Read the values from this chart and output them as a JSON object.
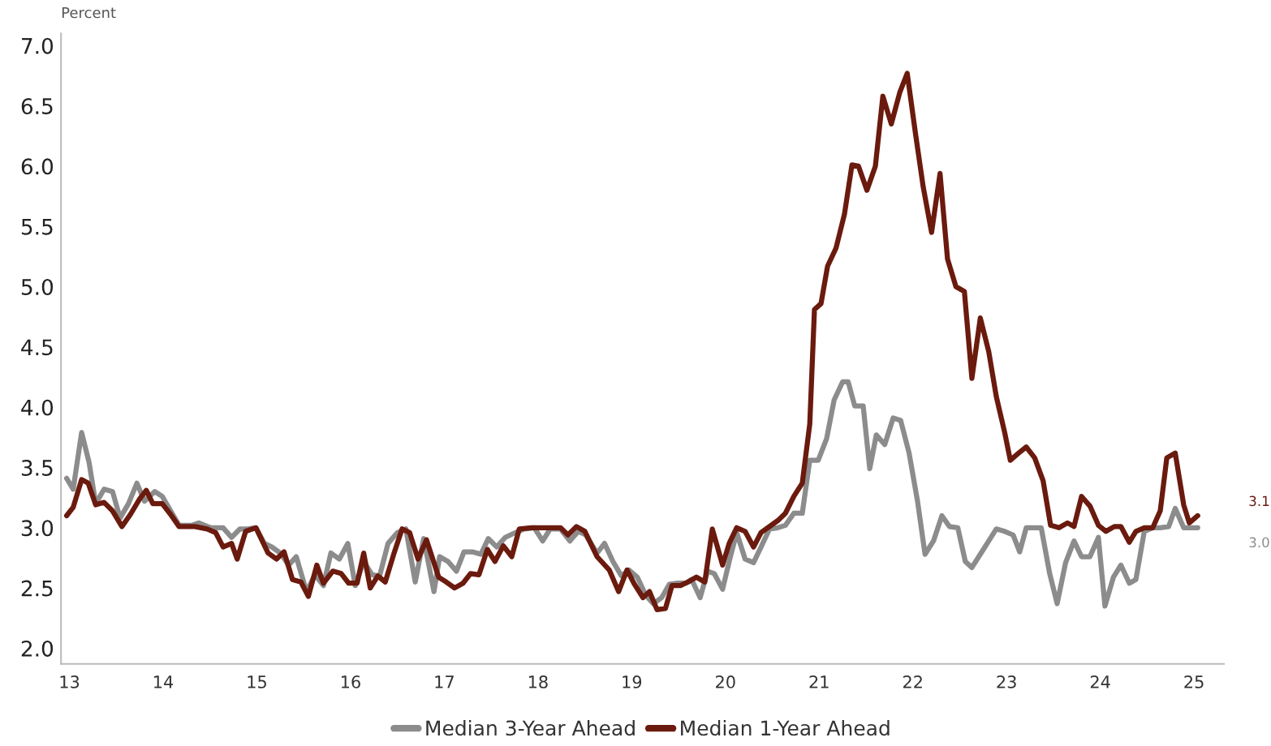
{
  "chart_data": {
    "type": "line",
    "ylabel": "Percent",
    "xlim": [
      12.91,
      25.32
    ],
    "ylim": [
      1.87,
      7.1
    ],
    "xticks": [
      13,
      14,
      15,
      16,
      17,
      18,
      19,
      20,
      21,
      22,
      23,
      24,
      25
    ],
    "yticks": [
      {
        "value": 2.0,
        "label": "2.0"
      },
      {
        "value": 2.5,
        "label": "2.5"
      },
      {
        "value": 3.0,
        "label": "3.0"
      },
      {
        "value": 3.5,
        "label": "3.5"
      },
      {
        "value": 4.0,
        "label": "4.0"
      },
      {
        "value": 4.5,
        "label": "4.5"
      },
      {
        "value": 5.0,
        "label": "5.0"
      },
      {
        "value": 5.5,
        "label": "5.5"
      },
      {
        "value": 6.0,
        "label": "6.0"
      },
      {
        "value": 6.5,
        "label": "6.5"
      },
      {
        "value": 7.0,
        "label": "7.0"
      }
    ],
    "grid": false,
    "legend": "bottom",
    "marker": "none",
    "line_style": "solid",
    "series": [
      {
        "name": "Median 3-Year Ahead",
        "color": "#8c8c8c",
        "x": [
          12.97,
          13.04,
          13.13,
          13.21,
          13.28,
          13.37,
          13.46,
          13.54,
          13.63,
          13.72,
          13.8,
          13.91,
          13.99,
          14.08,
          14.17,
          14.3,
          14.38,
          14.51,
          14.64,
          14.73,
          14.82,
          14.9,
          14.99,
          15.08,
          15.16,
          15.25,
          15.34,
          15.42,
          15.53,
          15.62,
          15.71,
          15.79,
          15.88,
          15.97,
          16.05,
          16.14,
          16.23,
          16.31,
          16.4,
          16.5,
          16.59,
          16.69,
          16.78,
          16.89,
          16.95,
          17.04,
          17.13,
          17.21,
          17.3,
          17.39,
          17.47,
          17.56,
          17.65,
          17.76,
          17.85,
          17.96,
          18.05,
          18.13,
          18.24,
          18.34,
          18.43,
          18.51,
          18.63,
          18.71,
          18.8,
          18.89,
          18.97,
          19.06,
          19.15,
          19.23,
          19.32,
          19.4,
          19.49,
          19.58,
          19.64,
          19.73,
          19.81,
          19.88,
          19.97,
          20.04,
          20.12,
          20.21,
          20.3,
          20.38,
          20.47,
          20.56,
          20.64,
          20.73,
          20.82,
          20.9,
          20.99,
          21.08,
          21.16,
          21.25,
          21.31,
          21.38,
          21.47,
          21.54,
          21.61,
          21.7,
          21.79,
          21.87,
          21.96,
          22.05,
          22.13,
          22.22,
          22.31,
          22.39,
          22.48,
          22.56,
          22.63,
          22.72,
          22.81,
          22.89,
          22.98,
          23.07,
          23.14,
          23.21,
          23.3,
          23.37,
          23.46,
          23.54,
          23.63,
          23.72,
          23.8,
          23.89,
          23.98,
          24.05,
          24.14,
          24.22,
          24.31,
          24.38,
          24.47,
          24.56,
          24.64,
          24.73,
          24.8,
          24.89,
          24.95,
          25.04
        ],
        "values": [
          3.41,
          3.32,
          3.79,
          3.54,
          3.2,
          3.32,
          3.3,
          3.08,
          3.2,
          3.37,
          3.22,
          3.3,
          3.26,
          3.14,
          3.02,
          3.02,
          3.04,
          3.0,
          3.0,
          2.92,
          2.99,
          2.99,
          3.0,
          2.87,
          2.84,
          2.79,
          2.69,
          2.76,
          2.47,
          2.61,
          2.52,
          2.79,
          2.74,
          2.87,
          2.52,
          2.72,
          2.61,
          2.6,
          2.87,
          2.96,
          2.99,
          2.55,
          2.91,
          2.47,
          2.76,
          2.72,
          2.64,
          2.8,
          2.8,
          2.78,
          2.91,
          2.84,
          2.92,
          2.96,
          2.99,
          3.0,
          2.89,
          2.99,
          2.99,
          2.89,
          2.97,
          2.94,
          2.79,
          2.87,
          2.72,
          2.6,
          2.65,
          2.59,
          2.44,
          2.37,
          2.42,
          2.53,
          2.54,
          2.54,
          2.57,
          2.42,
          2.64,
          2.62,
          2.49,
          2.72,
          2.96,
          2.74,
          2.71,
          2.84,
          2.99,
          3.0,
          3.02,
          3.12,
          3.12,
          3.56,
          3.56,
          3.74,
          4.06,
          4.21,
          4.21,
          4.01,
          4.01,
          3.49,
          3.77,
          3.69,
          3.91,
          3.89,
          3.62,
          3.22,
          2.78,
          2.89,
          3.1,
          3.01,
          3.0,
          2.72,
          2.67,
          2.78,
          2.89,
          2.99,
          2.97,
          2.94,
          2.8,
          3.0,
          3.0,
          3.0,
          2.62,
          2.37,
          2.71,
          2.89,
          2.76,
          2.76,
          2.92,
          2.35,
          2.59,
          2.69,
          2.54,
          2.57,
          2.97,
          3.0,
          3.0,
          3.01,
          3.16,
          3.0,
          3.0,
          3.0
        ]
      },
      {
        "name": "Median 1-Year Ahead",
        "color": "#6b1a0e",
        "x": [
          12.97,
          13.04,
          13.13,
          13.2,
          13.28,
          13.37,
          13.46,
          13.56,
          13.65,
          13.75,
          13.82,
          13.89,
          13.99,
          14.08,
          14.17,
          14.34,
          14.47,
          14.56,
          14.64,
          14.73,
          14.79,
          14.88,
          14.99,
          15.12,
          15.21,
          15.29,
          15.38,
          15.47,
          15.55,
          15.64,
          15.71,
          15.81,
          15.9,
          15.98,
          16.07,
          16.14,
          16.21,
          16.29,
          16.37,
          16.46,
          16.55,
          16.63,
          16.72,
          16.81,
          16.94,
          17.02,
          17.11,
          17.2,
          17.28,
          17.37,
          17.46,
          17.54,
          17.63,
          17.72,
          17.8,
          17.93,
          18.06,
          18.24,
          18.32,
          18.41,
          18.5,
          18.63,
          18.76,
          18.86,
          18.95,
          19.03,
          19.12,
          19.19,
          19.27,
          19.36,
          19.43,
          19.52,
          19.6,
          19.69,
          19.78,
          19.86,
          19.97,
          20.04,
          20.12,
          20.21,
          20.3,
          20.38,
          20.47,
          20.56,
          20.64,
          20.73,
          20.82,
          20.9,
          20.95,
          21.02,
          21.09,
          21.18,
          21.27,
          21.35,
          21.42,
          21.51,
          21.6,
          21.68,
          21.77,
          21.86,
          21.94,
          22.03,
          22.11,
          22.2,
          22.29,
          22.37,
          22.46,
          22.55,
          22.63,
          22.72,
          22.81,
          22.89,
          22.98,
          23.04,
          23.13,
          23.21,
          23.3,
          23.39,
          23.47,
          23.56,
          23.65,
          23.72,
          23.8,
          23.89,
          23.98,
          24.06,
          24.15,
          24.22,
          24.31,
          24.38,
          24.47,
          24.56,
          24.64,
          24.71,
          24.8,
          24.89,
          24.95,
          25.04
        ],
        "values": [
          3.1,
          3.17,
          3.4,
          3.37,
          3.19,
          3.21,
          3.14,
          3.01,
          3.11,
          3.24,
          3.31,
          3.2,
          3.2,
          3.11,
          3.01,
          3.01,
          2.99,
          2.96,
          2.84,
          2.87,
          2.74,
          2.97,
          3.0,
          2.79,
          2.74,
          2.8,
          2.57,
          2.55,
          2.43,
          2.69,
          2.54,
          2.64,
          2.62,
          2.54,
          2.54,
          2.79,
          2.5,
          2.6,
          2.55,
          2.78,
          2.99,
          2.96,
          2.74,
          2.9,
          2.59,
          2.55,
          2.5,
          2.54,
          2.62,
          2.61,
          2.82,
          2.72,
          2.85,
          2.76,
          2.99,
          3.0,
          3.0,
          3.0,
          2.94,
          3.01,
          2.97,
          2.76,
          2.65,
          2.47,
          2.65,
          2.53,
          2.42,
          2.47,
          2.32,
          2.33,
          2.52,
          2.52,
          2.55,
          2.59,
          2.55,
          2.99,
          2.69,
          2.87,
          3.0,
          2.97,
          2.84,
          2.96,
          3.01,
          3.06,
          3.12,
          3.26,
          3.37,
          3.86,
          4.81,
          4.86,
          5.17,
          5.32,
          5.6,
          6.01,
          6.0,
          5.8,
          6.0,
          6.58,
          6.35,
          6.61,
          6.77,
          6.26,
          5.83,
          5.45,
          5.94,
          5.23,
          5.0,
          4.96,
          4.24,
          4.74,
          4.46,
          4.09,
          3.79,
          3.56,
          3.62,
          3.67,
          3.58,
          3.39,
          3.02,
          3.0,
          3.04,
          3.01,
          3.26,
          3.18,
          3.02,
          2.97,
          3.01,
          3.01,
          2.88,
          2.97,
          3.0,
          3.0,
          3.14,
          3.58,
          3.62,
          3.19,
          3.04,
          3.1
        ]
      }
    ],
    "annotations": [
      "3.1",
      "3.0"
    ]
  }
}
